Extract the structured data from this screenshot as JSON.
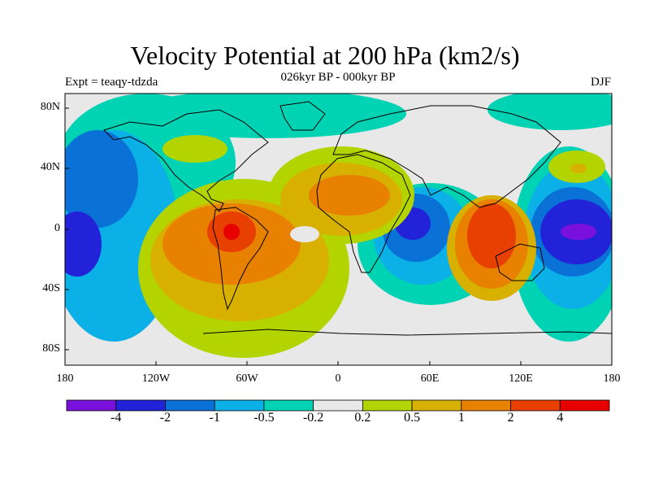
{
  "title": "Velocity Potential at 200 hPa (km2/s)",
  "subtitle": "026kyr BP - 000kyr BP",
  "experiment": "Expt = teaqy-tdzda",
  "season": "DJF",
  "map": {
    "projection": "cylindrical equidistant",
    "lon_range": [
      -180,
      180
    ],
    "lat_range": [
      -90,
      90
    ],
    "lat_ticks": [
      "80N",
      "40N",
      "0",
      "40S",
      "80S"
    ],
    "lon_ticks": [
      "180",
      "120W",
      "60W",
      "0",
      "60E",
      "120E",
      "180"
    ]
  },
  "colorbar": {
    "labels": [
      "-4",
      "-2",
      "-1",
      "-0.5",
      "-0.2",
      "0.2",
      "0.5",
      "1",
      "2",
      "4"
    ],
    "colors": [
      "#7a10dc",
      "#2222d8",
      "#0a72d6",
      "#0ab0e6",
      "#00d2b4",
      "#e8e8e8",
      "#b4d400",
      "#d8b000",
      "#e88000",
      "#e84000",
      "#e80000"
    ]
  }
}
